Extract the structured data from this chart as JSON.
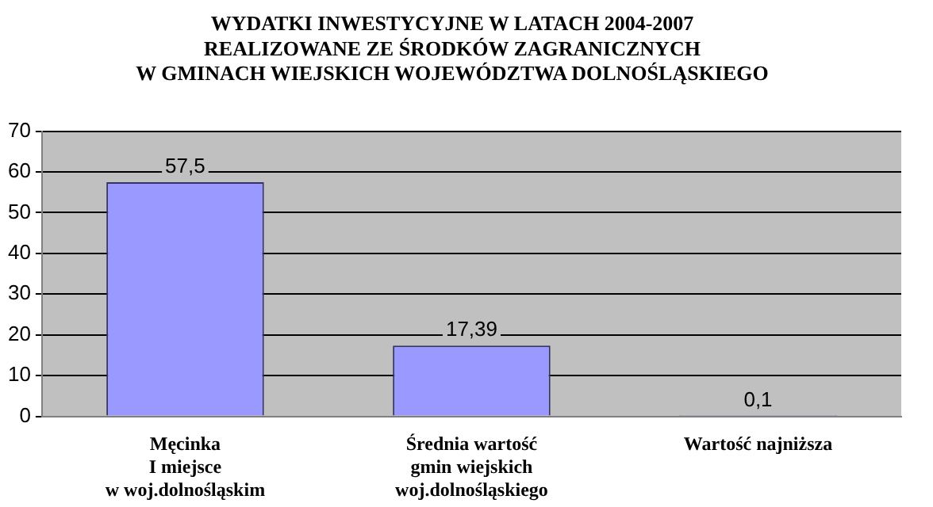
{
  "chart_data": {
    "type": "bar",
    "title": "WYDATKI INWESTYCYJNE W LATACH 2004-2007\nREALIZOWANE ZE ŚRODKÓW ZAGRANICZNYCH\nW GMINACH WIEJSKICH WOJEWÓDZTWA DOLNOŚLĄSKIEGO",
    "categories": [
      "Męcinka\nI miejsce\nw woj.dolnośląskim",
      "Średnia wartość\ngmin wiejskich\nwoj.dolnośląskiego",
      "Wartość najniższa"
    ],
    "values": [
      57.5,
      17.39,
      0.1
    ],
    "value_labels": [
      "57,5",
      "17,39",
      "0,1"
    ],
    "color": "#9999ff",
    "ylim": [
      0,
      70
    ],
    "yticks": [
      0,
      10,
      20,
      30,
      40,
      50,
      60,
      70
    ],
    "grid": "y"
  }
}
